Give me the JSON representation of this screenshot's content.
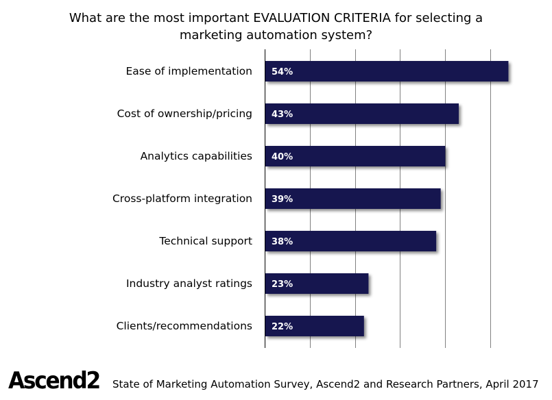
{
  "chart_data": {
    "type": "bar",
    "orientation": "horizontal",
    "title_lines": [
      "What are the most important EVALUATION CRITERIA for selecting a",
      "marketing automation system?"
    ],
    "categories": [
      "Ease of implementation",
      "Cost of ownership/pricing",
      "Analytics capabilities",
      "Cross-platform integration",
      "Technical support",
      "Industry analyst ratings",
      "Clients/recommendations"
    ],
    "values": [
      54,
      43,
      40,
      39,
      38,
      23,
      22
    ],
    "value_labels": [
      "54%",
      "43%",
      "40%",
      "39%",
      "38%",
      "23%",
      "22%"
    ],
    "xlim": [
      0,
      55
    ],
    "gridline_step": 10,
    "grid": true,
    "bar_color": "#14144f",
    "grid_color": "#808080"
  },
  "footer": {
    "logo": "Ascend2",
    "source": "State of Marketing Automation Survey, Ascend2 and Research Partners, April 2017"
  }
}
